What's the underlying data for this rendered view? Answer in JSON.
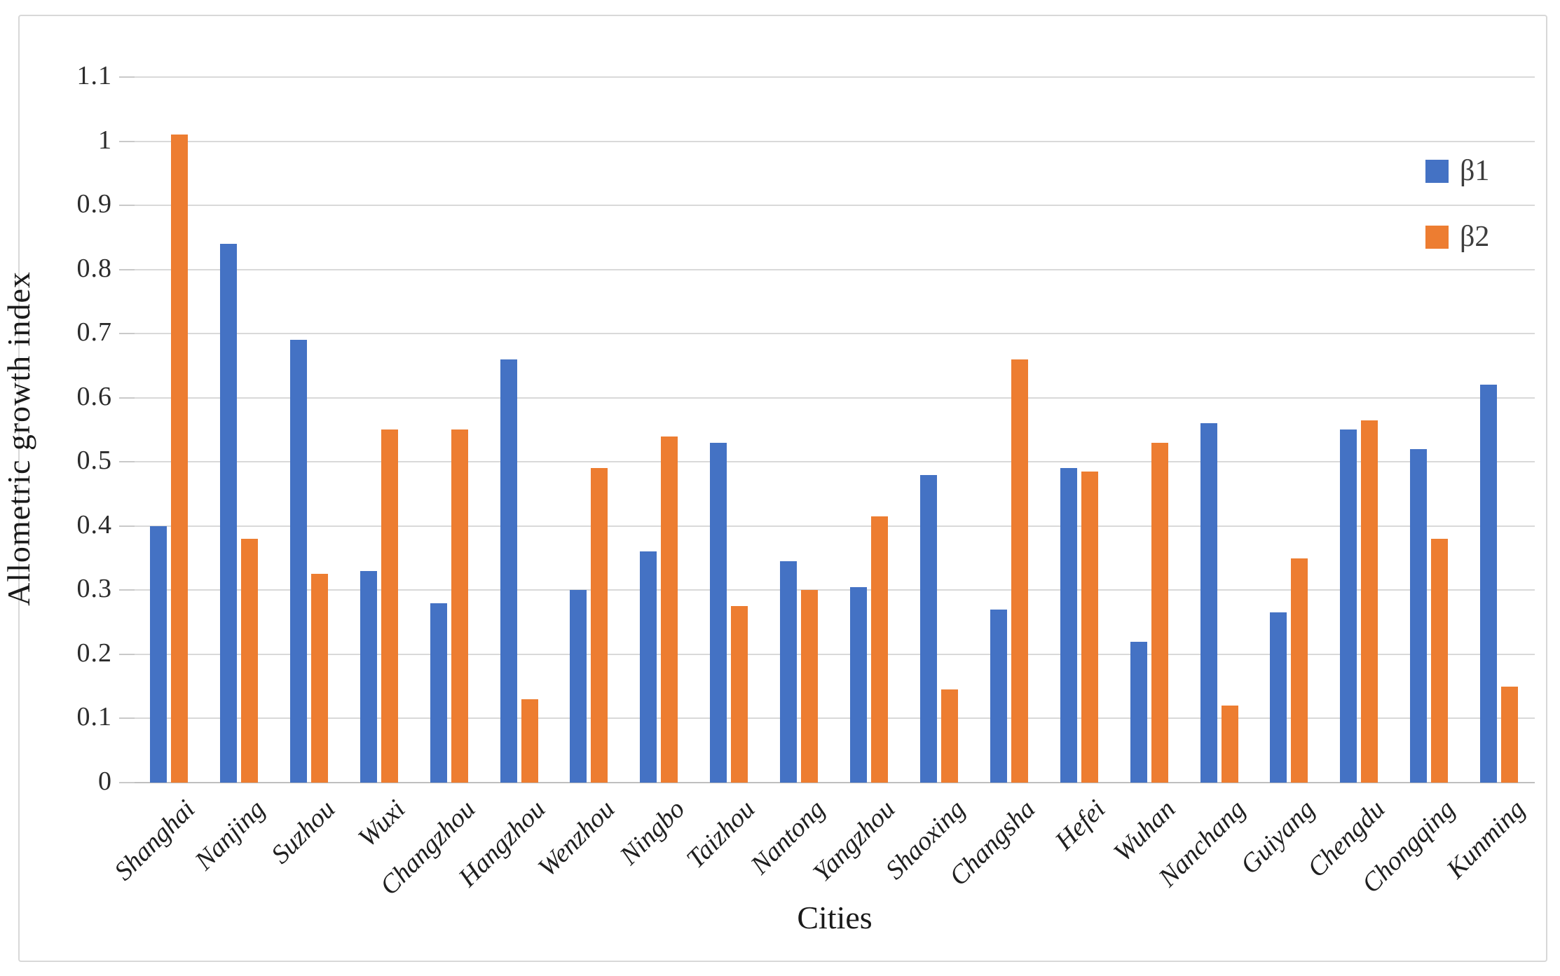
{
  "figure": {
    "y_axis_title": "Allometric growth index",
    "x_axis_title": "Cities"
  },
  "chart_data": {
    "type": "bar",
    "title": "",
    "xlabel": "Cities",
    "ylabel": "Allometric growth index",
    "ylim": [
      0,
      1.1
    ],
    "ytick_step": 0.1,
    "ytick_labels": [
      "0",
      "0.1",
      "0.2",
      "0.3",
      "0.4",
      "0.5",
      "0.6",
      "0.7",
      "0.8",
      "0.9",
      "1",
      "1.1"
    ],
    "grid": true,
    "legend_position": "inside-top-right",
    "categories": [
      "Shanghai",
      "Nanjing",
      "Suzhou",
      "Wuxi",
      "Changzhou",
      "Hangzhou",
      "Wenzhou",
      "Ningbo",
      "Taizhou",
      "Nantong",
      "Yangzhou",
      "Shaoxing",
      "Changsha",
      "Hefei",
      "Wuhan",
      "Nanchang",
      "Guiyang",
      "Chengdu",
      "Chongqing",
      "Kunming"
    ],
    "series": [
      {
        "name": "β1",
        "color": "#4472C4",
        "values": [
          0.4,
          0.84,
          0.69,
          0.33,
          0.28,
          0.66,
          0.3,
          0.36,
          0.53,
          0.345,
          0.305,
          0.48,
          0.27,
          0.49,
          0.22,
          0.56,
          0.265,
          0.55,
          0.52,
          0.62
        ]
      },
      {
        "name": "β2",
        "color": "#ED7D31",
        "values": [
          1.01,
          0.38,
          0.325,
          0.55,
          0.55,
          0.13,
          0.49,
          0.54,
          0.275,
          0.3,
          0.415,
          0.145,
          0.66,
          0.485,
          0.53,
          0.12,
          0.35,
          0.565,
          0.38,
          0.15
        ]
      }
    ],
    "colors": {
      "gridline": "#d9d9d9",
      "axis_line": "#bfbfbf",
      "text": "#2b2b2b",
      "border": "#d8d8d8"
    }
  }
}
